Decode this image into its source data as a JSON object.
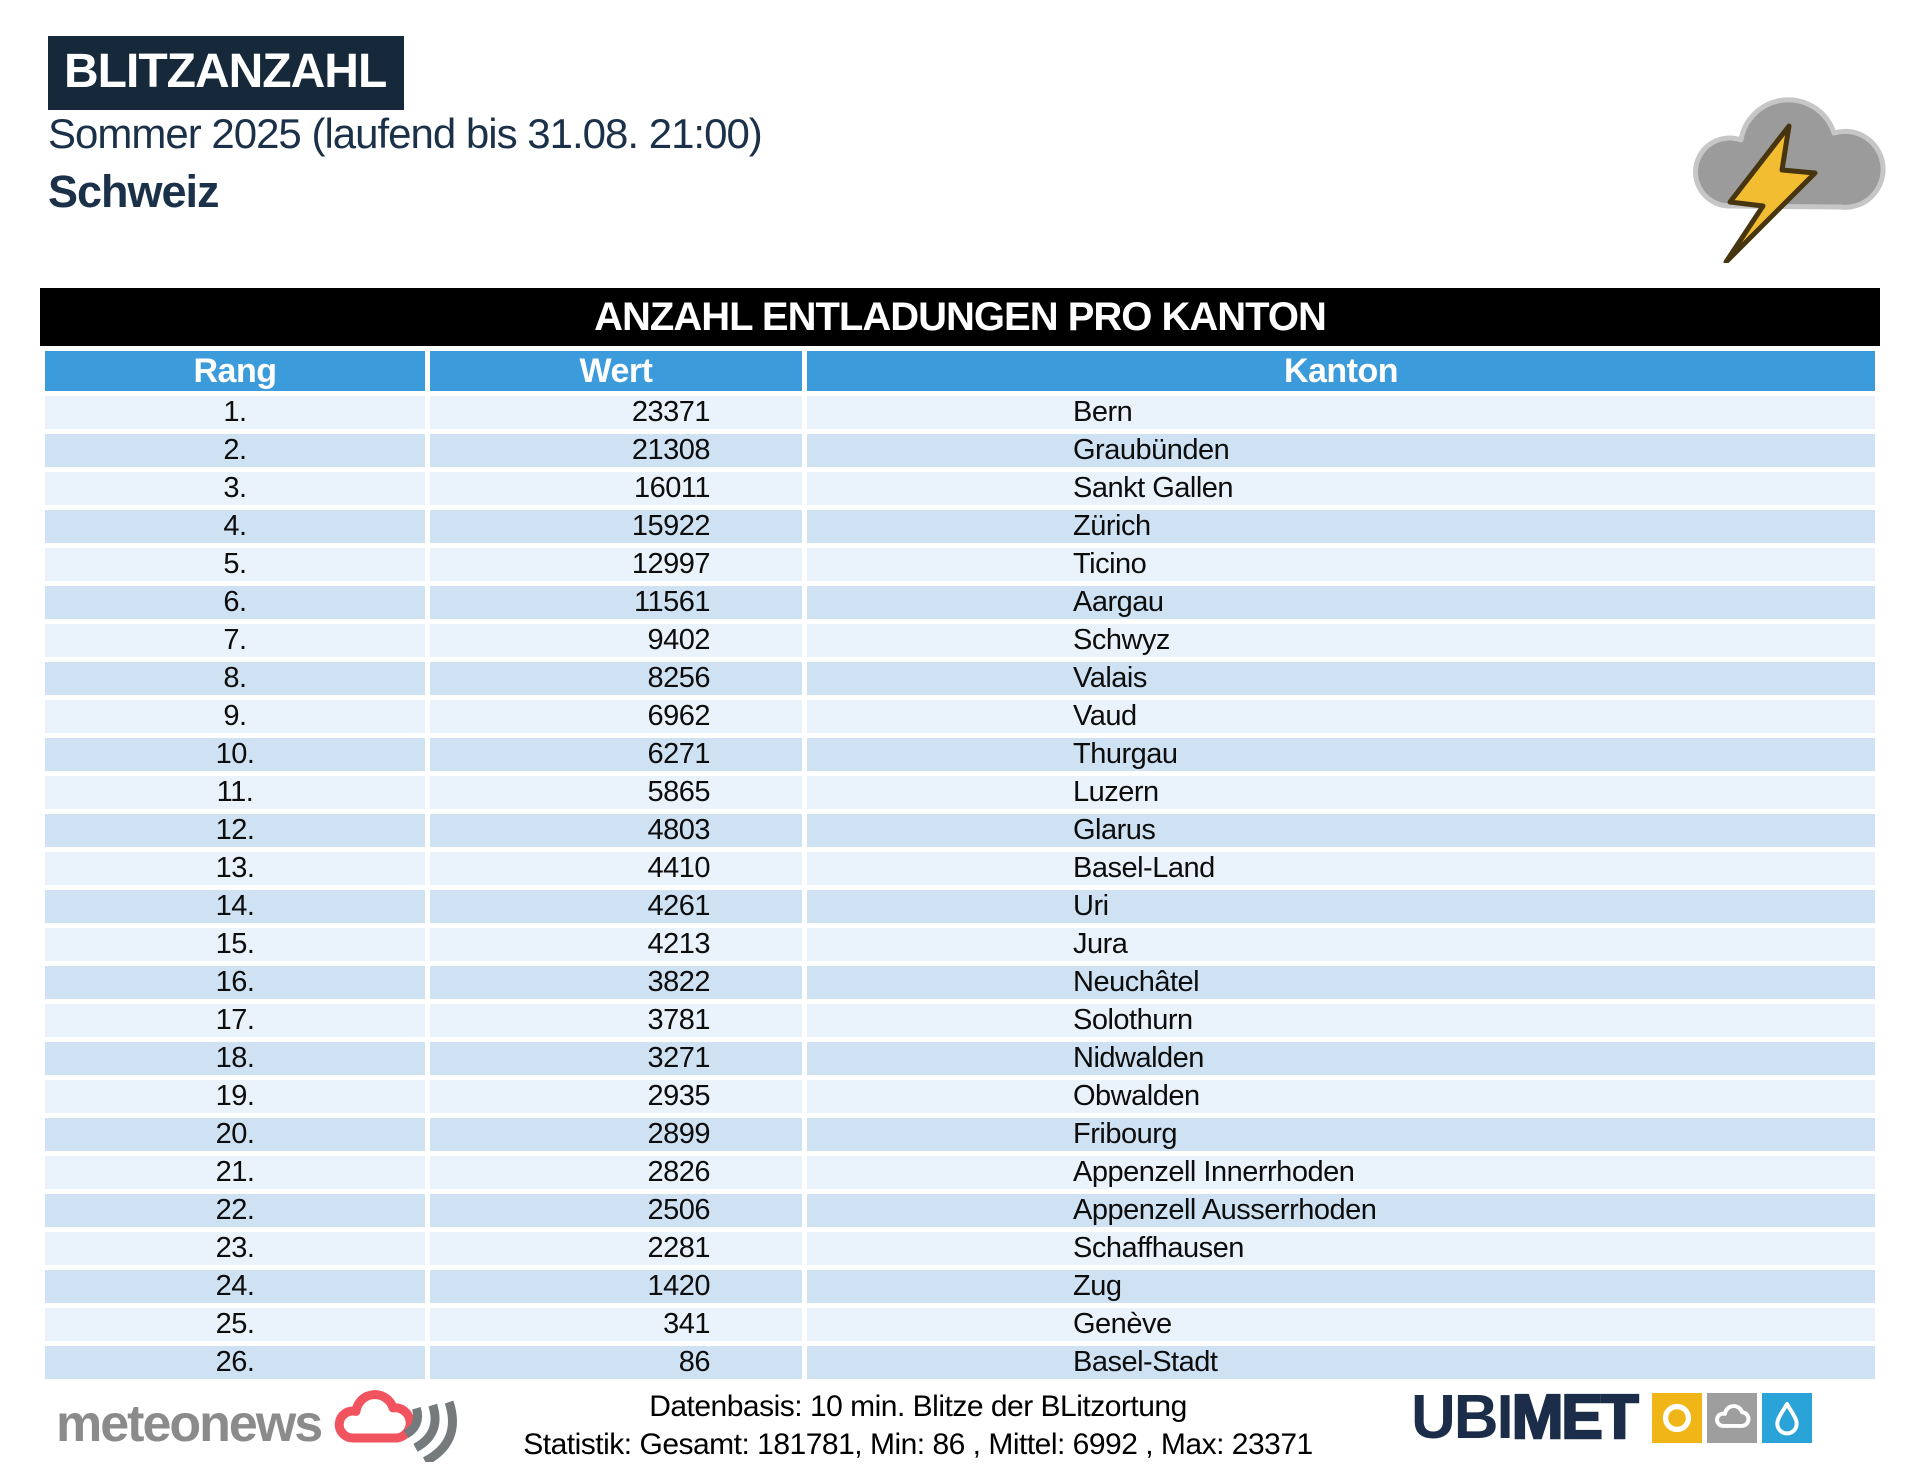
{
  "header": {
    "title": "BLITZANZAHL",
    "subtitle": "Sommer 2025 (laufend bis 31.08. 21:00)",
    "region": "Schweiz"
  },
  "table": {
    "title": "ANZAHL ENTLADUNGEN PRO KANTON",
    "columns": {
      "rang": "Rang",
      "wert": "Wert",
      "kanton": "Kanton"
    },
    "rows": [
      {
        "rank": "1.",
        "value": "23371",
        "canton": "Bern"
      },
      {
        "rank": "2.",
        "value": "21308",
        "canton": "Graubünden"
      },
      {
        "rank": "3.",
        "value": "16011",
        "canton": "Sankt Gallen"
      },
      {
        "rank": "4.",
        "value": "15922",
        "canton": "Zürich"
      },
      {
        "rank": "5.",
        "value": "12997",
        "canton": "Ticino"
      },
      {
        "rank": "6.",
        "value": "11561",
        "canton": "Aargau"
      },
      {
        "rank": "7.",
        "value": "9402",
        "canton": "Schwyz"
      },
      {
        "rank": "8.",
        "value": "8256",
        "canton": "Valais"
      },
      {
        "rank": "9.",
        "value": "6962",
        "canton": "Vaud"
      },
      {
        "rank": "10.",
        "value": "6271",
        "canton": "Thurgau"
      },
      {
        "rank": "11.",
        "value": "5865",
        "canton": "Luzern"
      },
      {
        "rank": "12.",
        "value": "4803",
        "canton": "Glarus"
      },
      {
        "rank": "13.",
        "value": "4410",
        "canton": "Basel-Land"
      },
      {
        "rank": "14.",
        "value": "4261",
        "canton": "Uri"
      },
      {
        "rank": "15.",
        "value": "4213",
        "canton": "Jura"
      },
      {
        "rank": "16.",
        "value": "3822",
        "canton": "Neuchâtel"
      },
      {
        "rank": "17.",
        "value": "3781",
        "canton": "Solothurn"
      },
      {
        "rank": "18.",
        "value": "3271",
        "canton": "Nidwalden"
      },
      {
        "rank": "19.",
        "value": "2935",
        "canton": "Obwalden"
      },
      {
        "rank": "20.",
        "value": "2899",
        "canton": "Fribourg"
      },
      {
        "rank": "21.",
        "value": "2826",
        "canton": "Appenzell Innerrhoden"
      },
      {
        "rank": "22.",
        "value": "2506",
        "canton": "Appenzell Ausserrhoden"
      },
      {
        "rank": "23.",
        "value": "2281",
        "canton": "Schaffhausen"
      },
      {
        "rank": "24.",
        "value": "1420",
        "canton": "Zug"
      },
      {
        "rank": "25.",
        "value": "341",
        "canton": "Genève"
      },
      {
        "rank": "26.",
        "value": "86",
        "canton": "Basel-Stadt"
      }
    ]
  },
  "footer": {
    "source_line": "Datenbasis: 10 min. Blitze der BLitzortung",
    "stats_line": "Statistik: Gesamt: 181781, Min: 86 , Mittel: 6992 , Max: 23371",
    "meteonews_label": "meteonews",
    "ubimet_label_left": "UBI",
    "ubimet_label_right": "MET"
  },
  "colors": {
    "navy": "#16293b",
    "text_navy": "#1b3149",
    "header_blue": "#3c9bdb",
    "row_light": "#eaf2fb",
    "row_dark": "#cfe2f3",
    "table_title_bg": "#000000",
    "bolt_yellow": "#f3bd31",
    "bolt_outline": "#46350f",
    "cloud_gray": "#9b9b9b",
    "meteonews_gray": "#8b8b8b",
    "meteonews_red": "#f2545f",
    "ubimet_navy": "#1b2d49",
    "ubimet_sun_yellow": "#f0b517",
    "ubimet_cloud_gray": "#9e9e9e",
    "ubimet_drop_blue": "#29a3d8"
  },
  "chart_data": {
    "type": "table",
    "title": "ANZAHL ENTLADUNGEN PRO KANTON",
    "columns": [
      "Rang",
      "Wert",
      "Kanton"
    ],
    "categories": [
      "Bern",
      "Graubünden",
      "Sankt Gallen",
      "Zürich",
      "Ticino",
      "Aargau",
      "Schwyz",
      "Valais",
      "Vaud",
      "Thurgau",
      "Luzern",
      "Glarus",
      "Basel-Land",
      "Uri",
      "Jura",
      "Neuchâtel",
      "Solothurn",
      "Nidwalden",
      "Obwalden",
      "Fribourg",
      "Appenzell Innerrhoden",
      "Appenzell Ausserrhoden",
      "Schaffhausen",
      "Zug",
      "Genève",
      "Basel-Stadt"
    ],
    "values": [
      23371,
      21308,
      16011,
      15922,
      12997,
      11561,
      9402,
      8256,
      6962,
      6271,
      5865,
      4803,
      4410,
      4261,
      4213,
      3822,
      3781,
      3271,
      2935,
      2899,
      2826,
      2506,
      2281,
      1420,
      341,
      86
    ],
    "stats": {
      "gesamt": 181781,
      "min": 86,
      "mittel": 6992,
      "max": 23371
    }
  }
}
